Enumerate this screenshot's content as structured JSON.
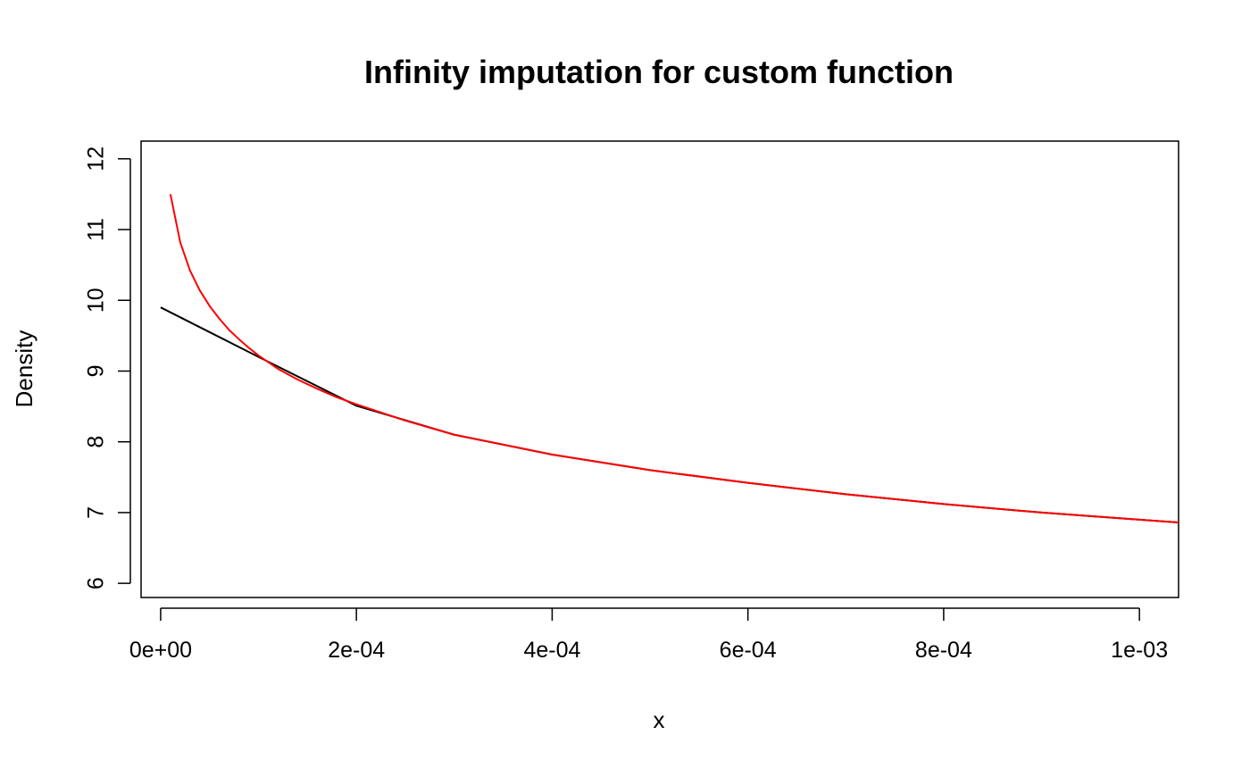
{
  "chart_data": {
    "type": "line",
    "title": "Infinity imputation for custom function",
    "xlabel": "x",
    "ylabel": "Density",
    "xlim": [
      -2e-05,
      0.00104
    ],
    "ylim": [
      5.8,
      12.25
    ],
    "grid": false,
    "legend": "none",
    "x_ticks": [
      {
        "value": 0,
        "label": "0e+00"
      },
      {
        "value": 0.0002,
        "label": "2e-04"
      },
      {
        "value": 0.0004,
        "label": "4e-04"
      },
      {
        "value": 0.0006,
        "label": "6e-04"
      },
      {
        "value": 0.0008,
        "label": "8e-04"
      },
      {
        "value": 0.001,
        "label": "1e-03"
      }
    ],
    "y_ticks": [
      {
        "value": 6,
        "label": "6"
      },
      {
        "value": 7,
        "label": "7"
      },
      {
        "value": 8,
        "label": "8"
      },
      {
        "value": 9,
        "label": "9"
      },
      {
        "value": 10,
        "label": "10"
      },
      {
        "value": 11,
        "label": "11"
      },
      {
        "value": 12,
        "label": "12"
      }
    ],
    "series": [
      {
        "color": "#000000",
        "x": [
          0,
          0.0001,
          0.0002,
          0.0003,
          0.0004,
          0.0005,
          0.0006,
          0.0007,
          0.0008,
          0.0009,
          0.001,
          0.00104
        ],
        "y": [
          9.9,
          9.2,
          8.51,
          8.1,
          7.82,
          7.6,
          7.42,
          7.26,
          7.12,
          7.0,
          6.9,
          6.86
        ]
      },
      {
        "color": "#ff0000",
        "x": [
          1e-05,
          2e-05,
          3e-05,
          4e-05,
          5e-05,
          6e-05,
          7e-05,
          8e-05,
          9e-05,
          0.0001,
          0.00012,
          0.00014,
          0.00016,
          0.00018,
          0.0002,
          0.00025,
          0.0003,
          0.0004,
          0.0005,
          0.0006,
          0.0007,
          0.0008,
          0.0009,
          0.001,
          0.00104
        ],
        "y": [
          11.5,
          10.82,
          10.42,
          10.14,
          9.92,
          9.74,
          9.58,
          9.45,
          9.33,
          9.22,
          9.03,
          8.88,
          8.75,
          8.63,
          8.53,
          8.3,
          8.1,
          7.82,
          7.6,
          7.42,
          7.26,
          7.12,
          7.0,
          6.9,
          6.86
        ]
      }
    ]
  }
}
